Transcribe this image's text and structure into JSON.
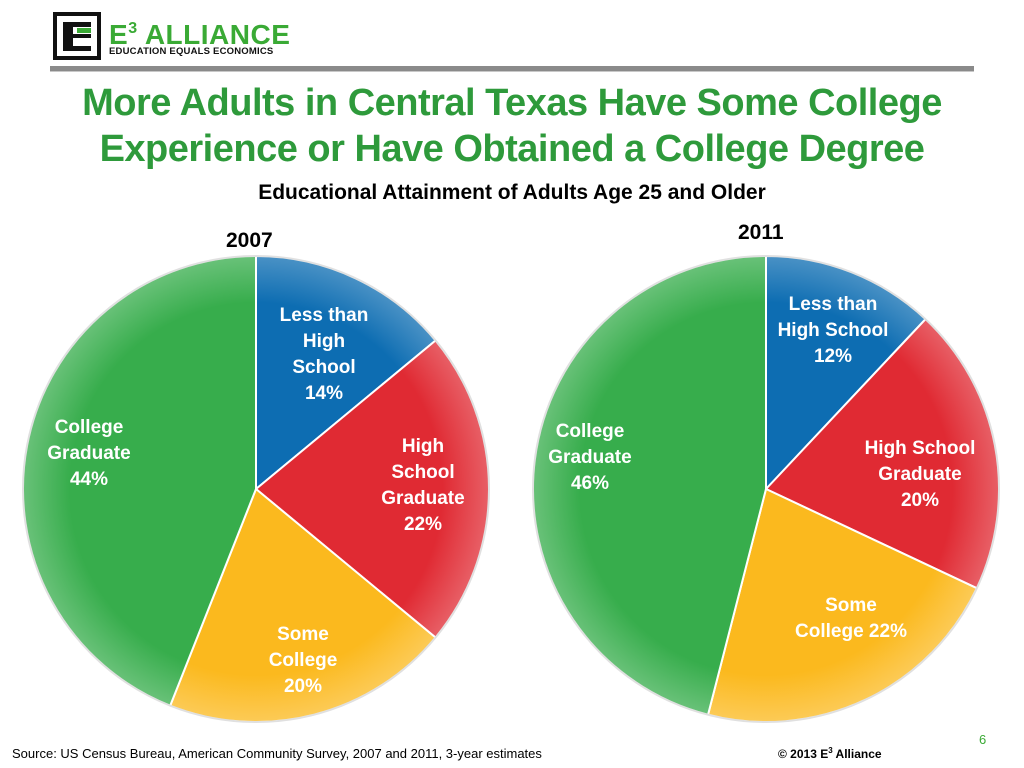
{
  "header": {
    "logo_name": "E3 ALLIANCE",
    "logo_name_base": "E",
    "logo_name_sup": "3",
    "logo_name_rest": " ALLIANCE",
    "logo_tagline": "EDUCATION EQUALS ECONOMICS",
    "colors": {
      "accent": "#3aaa35",
      "title": "#2e9a3b",
      "rule": "#8a8a8a"
    }
  },
  "title_line1": "More Adults in Central Texas Have Some College",
  "title_line2": "Experience or Have Obtained a College Degree",
  "subtitle": "Educational Attainment of Adults Age 25 and Older",
  "chart_data": [
    {
      "type": "pie",
      "title": "2007",
      "categories": [
        "Less than High School",
        "High School Graduate",
        "Some College",
        "College Graduate"
      ],
      "values": [
        14,
        22,
        20,
        44
      ],
      "data_labels": [
        [
          "Less than",
          "High",
          "School",
          "14%"
        ],
        [
          "High",
          "School",
          "Graduate",
          "22%"
        ],
        [
          "Some",
          "College",
          "20%"
        ],
        [
          "College",
          "Graduate",
          "44%"
        ]
      ],
      "colors": [
        "#0d6db2",
        "#e02a33",
        "#fbb91e",
        "#37ad4c"
      ],
      "start_angle": "12 o'clock",
      "direction": "clockwise",
      "legend": "none"
    },
    {
      "type": "pie",
      "title": "2011",
      "categories": [
        "Less than High School",
        "High School Graduate",
        "Some College",
        "College Graduate"
      ],
      "values": [
        12,
        20,
        22,
        46
      ],
      "data_labels": [
        [
          "Less than",
          "High School",
          "12%"
        ],
        [
          "High School",
          "Graduate",
          "20%"
        ],
        [
          "Some",
          "College 22%"
        ],
        [
          "College",
          "Graduate",
          "46%"
        ]
      ],
      "colors": [
        "#0d6db2",
        "#e02a33",
        "#fbb91e",
        "#37ad4c"
      ],
      "start_angle": "12 o'clock",
      "direction": "clockwise",
      "legend": "none"
    }
  ],
  "footer": {
    "source": "Source: US Census Bureau, American Community Survey, 2007 and 2011, 3-year estimates",
    "copyright_prefix": "© 2013 E",
    "copyright_sup": "3",
    "copyright_suffix": " Alliance",
    "page_number": "6"
  }
}
